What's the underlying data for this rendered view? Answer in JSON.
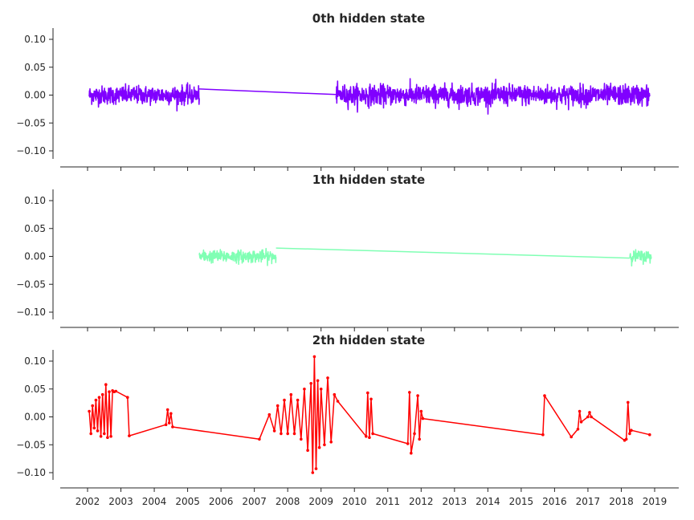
{
  "chart_data": [
    {
      "type": "line",
      "title": "0th hidden state",
      "xlim": [
        2001.55,
        2019.75
      ],
      "ylim": [
        -0.115,
        0.12
      ],
      "yticks": [
        -0.1,
        -0.05,
        0.0,
        0.05,
        0.1
      ],
      "ytick_labels": [
        "−0.10",
        "−0.05",
        "0.00",
        "0.05",
        "0.10"
      ],
      "grid": false,
      "series": [
        {
          "color": "#8000ff",
          "noisy_segments": [
            {
              "x_start": 2002.05,
              "x_end": 2005.35,
              "center": 0.0,
              "amplitude": 0.018
            },
            {
              "x_start": 2009.45,
              "x_end": 2018.85,
              "center": 0.0,
              "amplitude": 0.02
            }
          ],
          "connectors": [
            {
              "x": [
                2005.35,
                2009.45
              ],
              "y": [
                0.011,
                0.001
              ]
            }
          ]
        }
      ]
    },
    {
      "type": "line",
      "title": "1th hidden state",
      "xlim": [
        2001.55,
        2019.75
      ],
      "ylim": [
        -0.115,
        0.12
      ],
      "yticks": [
        -0.1,
        -0.05,
        0.0,
        0.05,
        0.1
      ],
      "ytick_labels": [
        "−0.10",
        "−0.05",
        "0.00",
        "0.05",
        "0.10"
      ],
      "grid": false,
      "series": [
        {
          "color": "#80ffb4",
          "noisy_segments": [
            {
              "x_start": 2005.35,
              "x_end": 2007.65,
              "center": 0.0,
              "amplitude": 0.012
            },
            {
              "x_start": 2018.25,
              "x_end": 2018.9,
              "center": 0.0,
              "amplitude": 0.012
            }
          ],
          "connectors": [
            {
              "x": [
                2007.65,
                2018.25
              ],
              "y": [
                0.015,
                -0.003
              ]
            }
          ]
        }
      ]
    },
    {
      "type": "line",
      "title": "2th hidden state",
      "xlim": [
        2001.55,
        2019.75
      ],
      "ylim": [
        -0.115,
        0.12
      ],
      "yticks": [
        -0.1,
        -0.05,
        0.0,
        0.05,
        0.1
      ],
      "ytick_labels": [
        "−0.10",
        "−0.05",
        "0.00",
        "0.05",
        "0.10"
      ],
      "xticks": [
        2002,
        2003,
        2004,
        2005,
        2006,
        2007,
        2008,
        2009,
        2010,
        2011,
        2012,
        2013,
        2014,
        2015,
        2016,
        2017,
        2018,
        2019
      ],
      "xtick_labels": [
        "2002",
        "2003",
        "2004",
        "2005",
        "2006",
        "2007",
        "2008",
        "2009",
        "2010",
        "2011",
        "2012",
        "2013",
        "2014",
        "2015",
        "2016",
        "2017",
        "2018",
        "2019"
      ],
      "grid": false,
      "series": [
        {
          "color": "#ff0000",
          "x": [
            2002.05,
            2002.1,
            2002.15,
            2002.2,
            2002.25,
            2002.3,
            2002.35,
            2002.4,
            2002.45,
            2002.5,
            2002.55,
            2002.6,
            2002.65,
            2002.7,
            2002.75,
            2002.8,
            2002.85,
            2003.2,
            2003.25,
            2004.35,
            2004.4,
            2004.45,
            2004.5,
            2004.55,
            2007.15,
            2007.45,
            2007.6,
            2007.7,
            2007.8,
            2007.9,
            2008.0,
            2008.1,
            2008.2,
            2008.3,
            2008.4,
            2008.5,
            2008.6,
            2008.7,
            2008.75,
            2008.8,
            2008.85,
            2008.9,
            2008.95,
            2009.0,
            2009.1,
            2009.2,
            2009.3,
            2009.4,
            2009.5,
            2010.35,
            2010.4,
            2010.45,
            2010.5,
            2010.55,
            2011.6,
            2011.65,
            2011.7,
            2011.8,
            2011.9,
            2011.95,
            2012.0,
            2012.05,
            2015.65,
            2015.7,
            2016.5,
            2016.7,
            2016.75,
            2016.8,
            2017.0,
            2017.05,
            2017.1,
            2018.1,
            2018.15,
            2018.2,
            2018.25,
            2018.3,
            2018.85
          ],
          "y": [
            0.01,
            -0.03,
            0.02,
            -0.02,
            0.03,
            -0.025,
            0.035,
            -0.035,
            0.04,
            -0.03,
            0.058,
            -0.037,
            0.045,
            -0.035,
            0.047,
            0.045,
            0.046,
            0.035,
            -0.034,
            -0.014,
            0.013,
            -0.011,
            0.006,
            -0.018,
            -0.04,
            0.004,
            -0.025,
            0.02,
            -0.03,
            0.03,
            -0.03,
            0.04,
            -0.03,
            0.03,
            -0.04,
            0.05,
            -0.06,
            0.06,
            -0.1,
            0.108,
            -0.093,
            0.065,
            -0.055,
            0.05,
            -0.05,
            0.07,
            -0.045,
            0.04,
            0.028,
            -0.035,
            0.043,
            -0.037,
            0.032,
            -0.03,
            -0.048,
            0.044,
            -0.065,
            -0.03,
            0.038,
            -0.04,
            0.01,
            -0.003,
            -0.032,
            0.038,
            -0.036,
            -0.022,
            0.01,
            -0.009,
            0.0,
            0.008,
            0.0,
            -0.042,
            -0.04,
            0.026,
            -0.03,
            -0.024,
            -0.032
          ]
        }
      ]
    }
  ]
}
